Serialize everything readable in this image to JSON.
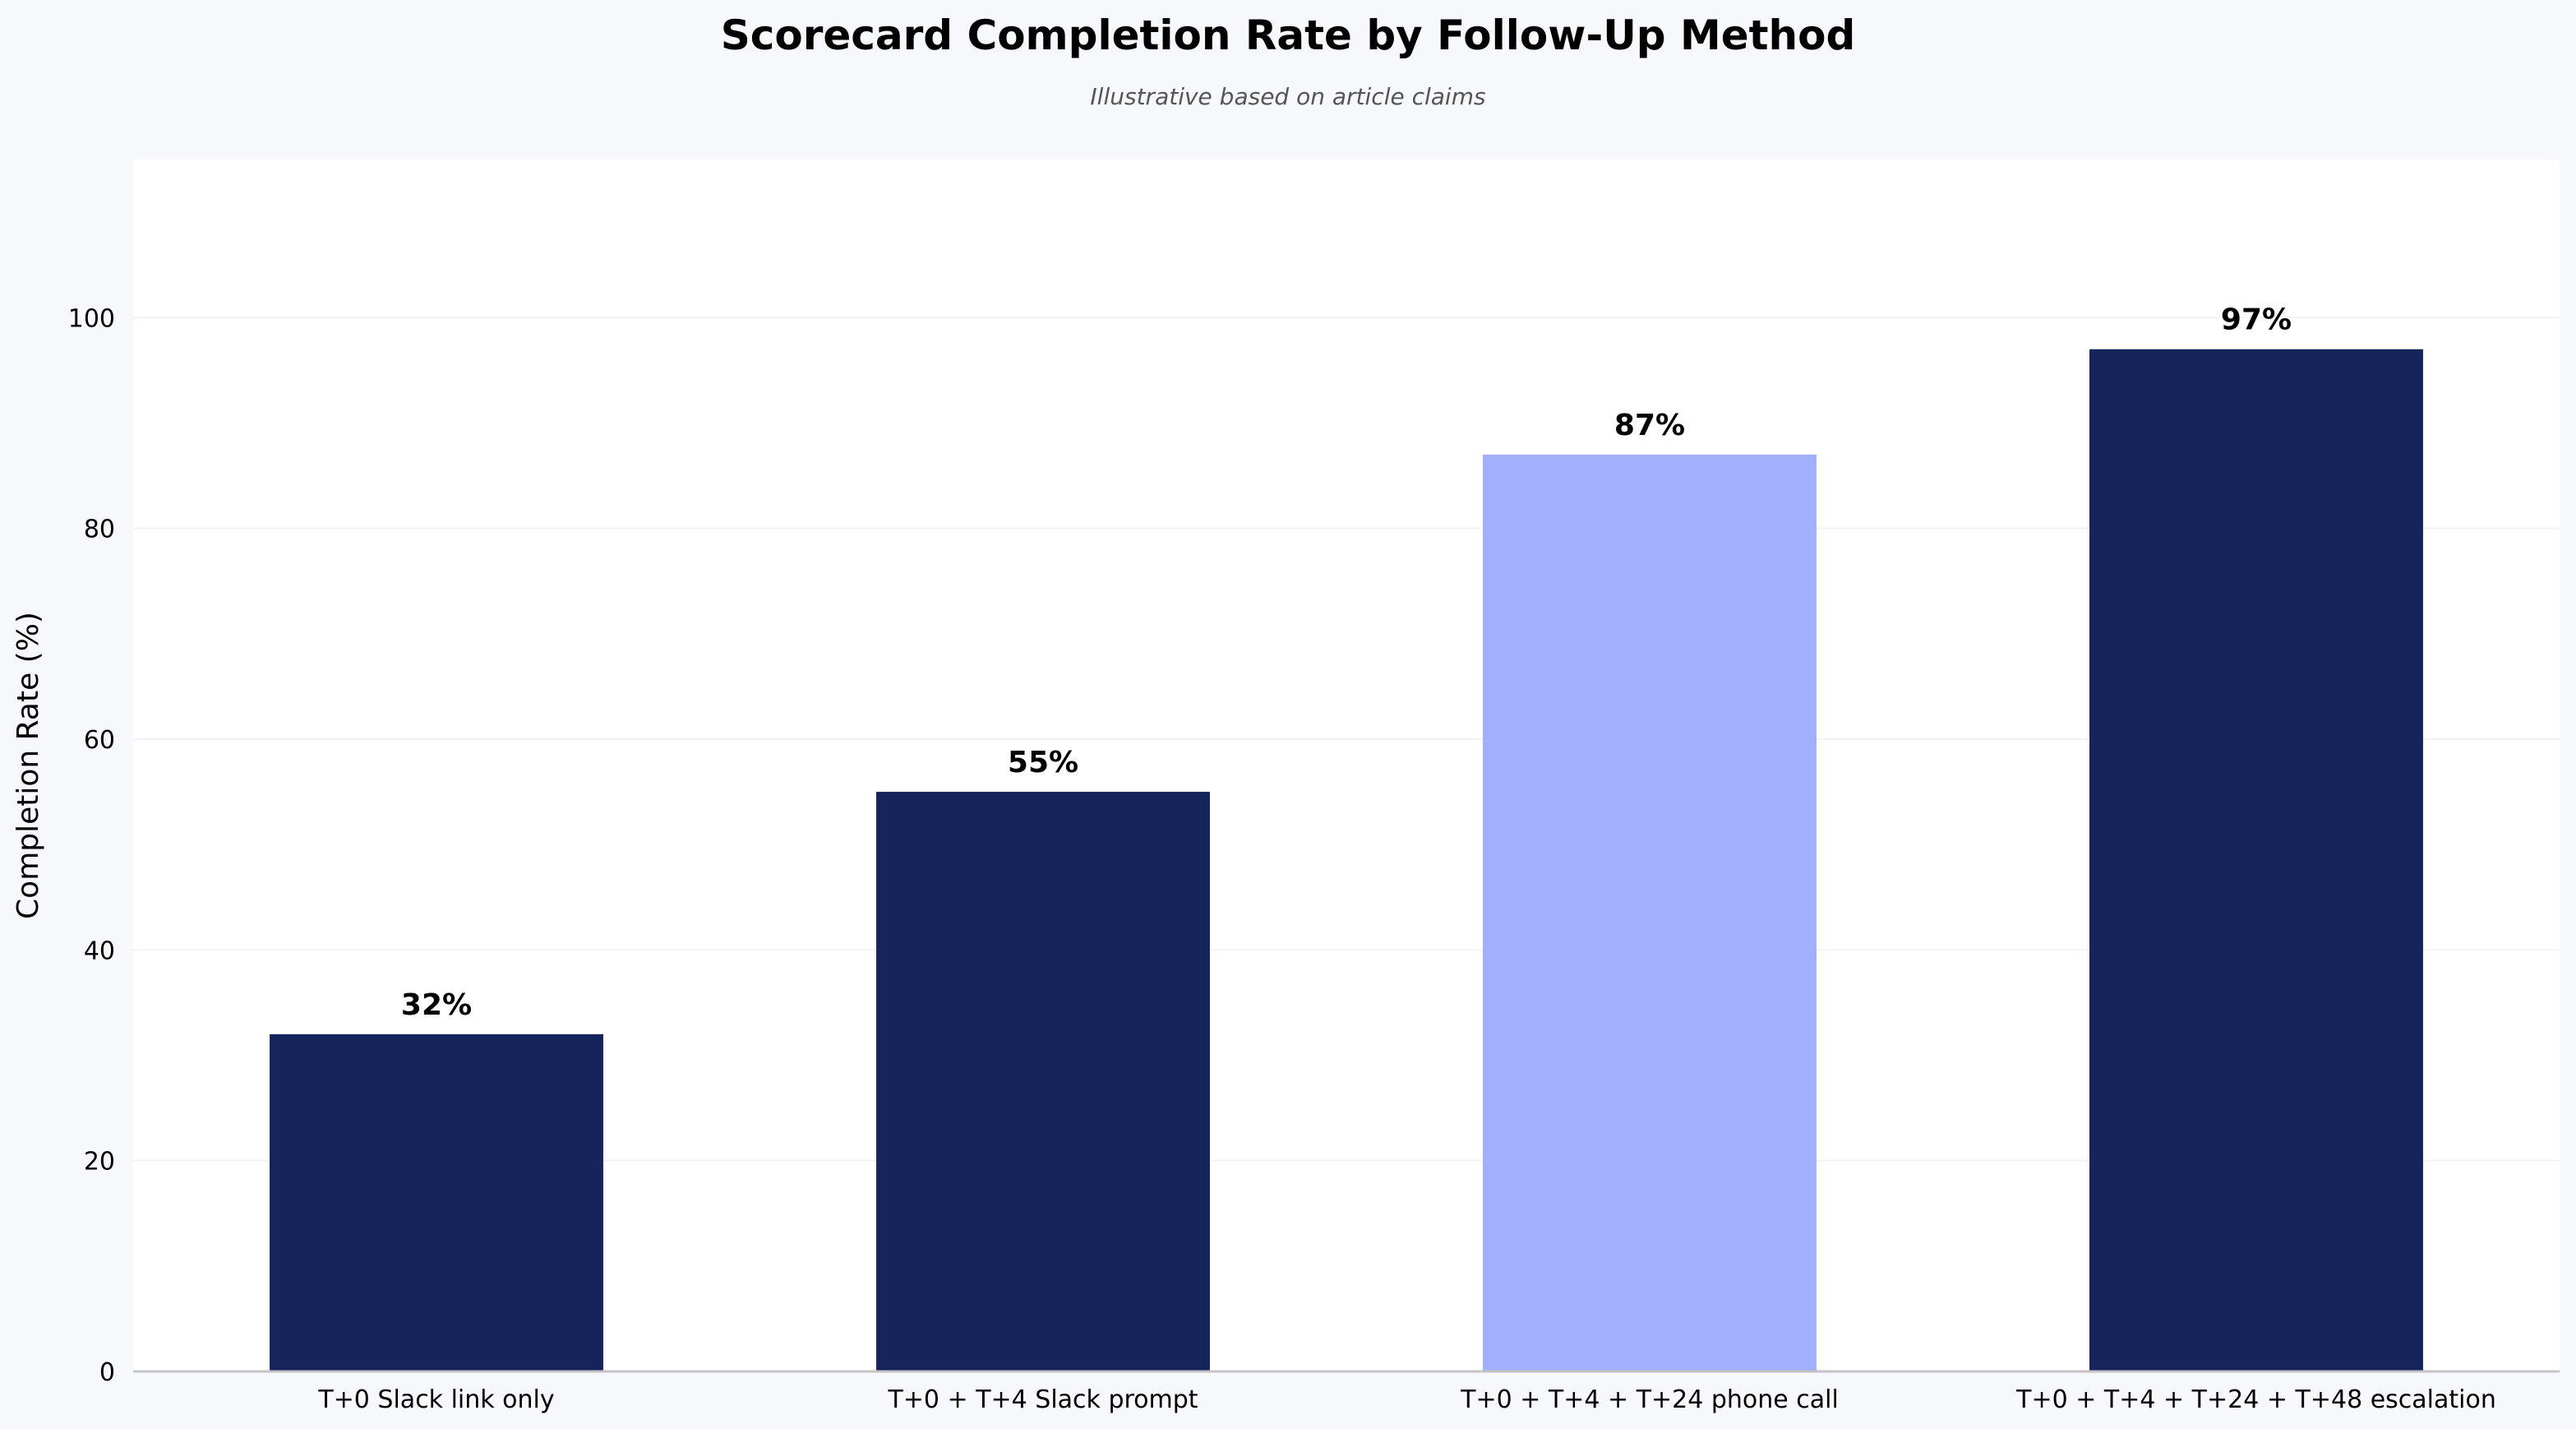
{
  "chart_data": {
    "type": "bar",
    "title": "Scorecard Completion Rate by Follow-Up Method",
    "subtitle": "Illustrative based on article claims",
    "xlabel": "",
    "ylabel": "Completion Rate (%)",
    "ylim": [
      0,
      115
    ],
    "yticks": [
      0,
      20,
      40,
      60,
      80,
      100
    ],
    "grid": true,
    "categories": [
      "T+0 Slack link only",
      "T+0 + T+4 Slack prompt",
      "T+0 + T+4 + T+24 phone call",
      "T+0 + T+4 + T+24 + T+48 escalation"
    ],
    "values": [
      32,
      55,
      87,
      97
    ],
    "data_labels": [
      "32%",
      "55%",
      "87%",
      "97%"
    ],
    "bar_colors": [
      "#15245b",
      "#15245b",
      "#a0b0fc",
      "#15245b"
    ],
    "plot_background": "#ffffff",
    "figure_background": "#f7f8fc"
  }
}
